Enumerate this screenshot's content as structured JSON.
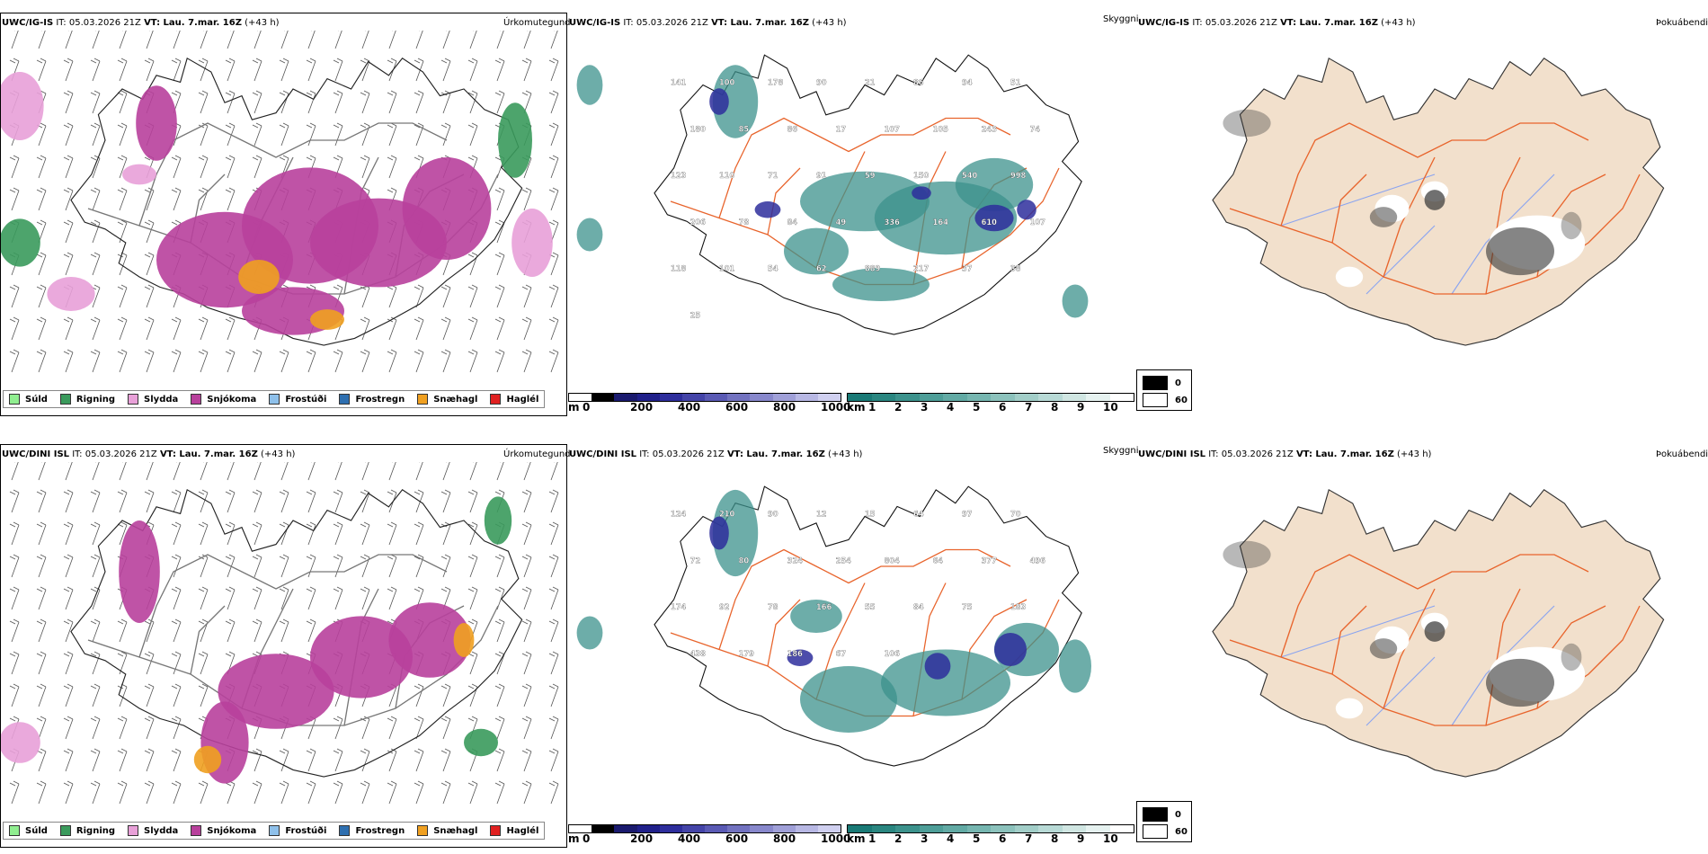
{
  "rows": [
    {
      "precip": {
        "model": "UWC/IG-IS",
        "it_label": "IT: 05.03.2026 21Z",
        "vt_label": "VT: Lau. 7.mar. 16Z",
        "lead": "(+43 h)",
        "title": "Úrkomutegund"
      },
      "cloudbase": {
        "model": "UWC/IG-IS",
        "it_label": "IT: 05.03.2026 21Z",
        "vt_label": "VT: Lau. 7.mar. 16Z",
        "lead": "(+43 h)",
        "title": "Skyggni",
        "labels": [
          "141",
          "100",
          "178",
          "90",
          "21",
          "86",
          "94",
          "51",
          "180",
          "85",
          "86",
          "17",
          "107",
          "105",
          "243",
          "74",
          "123",
          "110",
          "71",
          "91",
          "59",
          "150",
          "540",
          "998",
          "206",
          "78",
          "84",
          "49",
          "336",
          "164",
          "610",
          "107",
          "118",
          "101",
          "54",
          "62",
          "889",
          "217",
          "37",
          "38",
          "25"
        ]
      },
      "fog": {
        "model": "UWC/IG-IS",
        "it_label": "IT: 05.03.2026 21Z",
        "vt_label": "VT: Lau. 7.mar. 16Z",
        "lead": "(+43 h)",
        "title": "Þokuábendi"
      }
    },
    {
      "precip": {
        "model": "UWC/DINI ISL",
        "it_label": "IT: 05.03.2026 21Z",
        "vt_label": "VT: Lau. 7.mar. 16Z",
        "lead": "(+43 h)",
        "title": "Úrkomutegund"
      },
      "cloudbase": {
        "model": "UWC/DINI ISL",
        "it_label": "IT: 05.03.2026 21Z",
        "vt_label": "VT: Lau. 7.mar. 16Z",
        "lead": "(+43 h)",
        "title": "Skyggni",
        "labels": [
          "124",
          "210",
          "90",
          "12",
          "15",
          "64",
          "97",
          "70",
          "72",
          "80",
          "324",
          "254",
          "804",
          "64",
          "377",
          "496",
          "174",
          "92",
          "78",
          "166",
          "55",
          "84",
          "75",
          "183",
          "438",
          "179",
          "186",
          "67",
          "106"
        ]
      },
      "fog": {
        "model": "UWC/DINI ISL",
        "it_label": "IT: 05.03.2026 21Z",
        "vt_label": "VT: Lau. 7.mar. 16Z",
        "lead": "(+43 h)",
        "title": "Þokuábendi"
      }
    }
  ],
  "precip_legend": [
    {
      "label": "Súld",
      "color": "#90ee90"
    },
    {
      "label": "Rigning",
      "color": "#3a9a5c"
    },
    {
      "label": "Slydda",
      "color": "#e8a0d8"
    },
    {
      "label": "Snjókoma",
      "color": "#b8409c"
    },
    {
      "label": "Frostúði",
      "color": "#8ec0ea"
    },
    {
      "label": "Frostregn",
      "color": "#2e6fb0"
    },
    {
      "label": "Snæhagl",
      "color": "#f0a020"
    },
    {
      "label": "Haglél",
      "color": "#e02020"
    }
  ],
  "ceiling_colorbar": {
    "unit": "m",
    "ticks": [
      "0",
      "200",
      "400",
      "600",
      "800",
      "1000"
    ],
    "colors": [
      "#ffffff",
      "#000000",
      "#1a1a6e",
      "#20208a",
      "#2e2e9c",
      "#4444a8",
      "#5a5ab4",
      "#7272c0",
      "#8888cc",
      "#a0a0d8",
      "#b8b8e4",
      "#d0d0f0"
    ]
  },
  "visibility_colorbar": {
    "unit": "km",
    "ticks": [
      "1",
      "2",
      "3",
      "4",
      "5",
      "6",
      "7",
      "8",
      "9",
      "10"
    ],
    "colors": [
      "#1a7a76",
      "#2a8680",
      "#3c928c",
      "#4e9e98",
      "#62aaa4",
      "#76b6b0",
      "#8cc2bc",
      "#a2cec8",
      "#b8dad6",
      "#d0e6e2",
      "#e6f2f0",
      "#ffffff"
    ]
  },
  "fog_legend": {
    "black_label": "0",
    "white_label": "60"
  },
  "colors": {
    "land": "#f2e0cc",
    "roads": "#e8642c",
    "rivers": "#8aa4f0",
    "snow": "#b8409c",
    "rain": "#3a9a5c",
    "sleet": "#e8a0d8",
    "graupel": "#f0a020",
    "ceiling_blue": "#2e2e9c",
    "visibility_teal": "#3c928c"
  }
}
